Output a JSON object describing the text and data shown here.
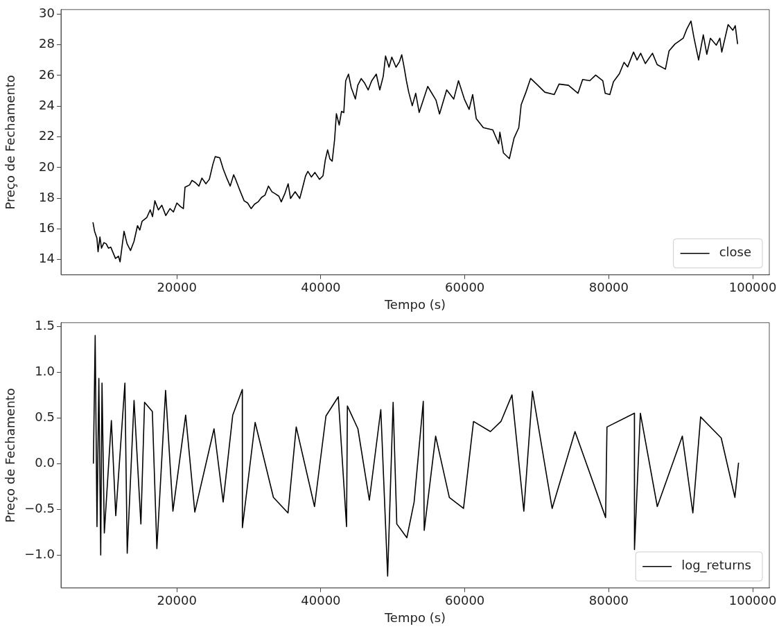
{
  "chart_data": [
    {
      "type": "line",
      "xlabel": "Tempo (s)",
      "ylabel": "Preço de Fechamento",
      "legend": "bottom right",
      "xlim": [
        3900,
        102300
      ],
      "ylim": [
        13.0,
        30.3
      ],
      "xticks": [
        20000,
        40000,
        60000,
        80000,
        100000
      ],
      "yticks": [
        14,
        16,
        18,
        20,
        22,
        24,
        26,
        28,
        30
      ],
      "x": [
        8340,
        8570,
        8890,
        9050,
        9310,
        9530,
        9860,
        10180,
        10500,
        10820,
        11140,
        11470,
        11880,
        12110,
        12430,
        12660,
        13080,
        13560,
        14040,
        14530,
        14850,
        15170,
        15810,
        16300,
        16620,
        16940,
        17430,
        17910,
        18460,
        19040,
        19520,
        20000,
        20490,
        20900,
        21130,
        21770,
        22100,
        22580,
        23060,
        23480,
        24030,
        24510,
        24990,
        25320,
        25960,
        26440,
        26930,
        27410,
        27890,
        28220,
        28700,
        29340,
        29830,
        30310,
        30790,
        31280,
        31760,
        32240,
        32720,
        33210,
        33690,
        34170,
        34500,
        34980,
        35460,
        35790,
        36430,
        37070,
        37400,
        37880,
        38200,
        38690,
        39170,
        39810,
        40300,
        40620,
        40940,
        41260,
        41580,
        41910,
        42160,
        42550,
        42870,
        43190,
        43450,
        43840,
        44220,
        44800,
        45130,
        45610,
        46090,
        46580,
        47060,
        47700,
        48190,
        48670,
        48990,
        49470,
        49860,
        50440,
        50920,
        51240,
        51570,
        51890,
        52210,
        52700,
        53180,
        53660,
        54850,
        56000,
        56490,
        57480,
        58460,
        59120,
        59940,
        60600,
        61090,
        61590,
        62570,
        63890,
        64710,
        64870,
        65370,
        66190,
        66840,
        67500,
        67830,
        68490,
        69140,
        69970,
        71120,
        72430,
        73090,
        74400,
        75720,
        76370,
        77360,
        78180,
        79170,
        79500,
        80150,
        80650,
        81470,
        82120,
        82620,
        83440,
        83930,
        84430,
        85080,
        86070,
        86720,
        87870,
        88370,
        89190,
        90340,
        90830,
        91420,
        91820,
        92480,
        93130,
        93620,
        94120,
        94940,
        95430,
        95700,
        96580,
        97240,
        97570,
        97900
      ],
      "series": [
        {
          "name": "close",
          "color": "#000000",
          "values": [
            16.43,
            15.84,
            15.4,
            14.51,
            15.47,
            14.74,
            15.1,
            15.03,
            14.74,
            14.81,
            14.44,
            14.07,
            14.22,
            13.85,
            15.03,
            15.84,
            15.03,
            14.59,
            15.18,
            16.21,
            15.92,
            16.5,
            16.73,
            17.24,
            16.8,
            17.83,
            17.24,
            17.54,
            16.87,
            17.32,
            17.1,
            17.69,
            17.46,
            17.32,
            18.72,
            18.87,
            19.16,
            19.01,
            18.79,
            19.31,
            18.94,
            19.23,
            20.19,
            20.71,
            20.64,
            19.9,
            19.31,
            18.79,
            19.53,
            19.16,
            18.57,
            17.83,
            17.69,
            17.32,
            17.61,
            17.76,
            18.05,
            18.2,
            18.79,
            18.42,
            18.28,
            18.13,
            17.76,
            18.28,
            18.94,
            17.98,
            18.42,
            17.98,
            18.57,
            19.46,
            19.75,
            19.38,
            19.68,
            19.23,
            19.46,
            20.49,
            21.15,
            20.56,
            20.41,
            21.82,
            23.51,
            22.77,
            23.66,
            23.58,
            25.65,
            26.09,
            25.21,
            24.47,
            25.36,
            25.8,
            25.5,
            25.06,
            25.65,
            26.09,
            25.06,
            25.95,
            27.27,
            26.54,
            27.2,
            26.54,
            26.9,
            27.35,
            26.54,
            25.65,
            24.91,
            24.03,
            24.84,
            23.59,
            25.29,
            24.39,
            23.49,
            25.06,
            24.46,
            25.66,
            24.46,
            23.79,
            24.76,
            23.19,
            22.6,
            22.45,
            21.55,
            22.3,
            20.95,
            20.58,
            21.92,
            22.6,
            24.09,
            24.91,
            25.81,
            25.44,
            24.91,
            24.76,
            25.44,
            25.36,
            24.84,
            25.74,
            25.66,
            26.03,
            25.66,
            24.84,
            24.76,
            25.59,
            26.11,
            26.86,
            26.56,
            27.53,
            27.01,
            27.45,
            26.78,
            27.45,
            26.71,
            26.41,
            27.6,
            28.05,
            28.43,
            29.02,
            29.55,
            28.5,
            27.01,
            28.65,
            27.38,
            28.43,
            27.98,
            28.43,
            27.53,
            29.32,
            28.95,
            29.25,
            28.05
          ]
        }
      ]
    },
    {
      "type": "line",
      "xlabel": "Tempo (s)",
      "ylabel": "Preço de Fechamento",
      "legend": "bottom right",
      "xlim": [
        3900,
        102300
      ],
      "ylim": [
        -1.36,
        1.54
      ],
      "xticks": [
        20000,
        40000,
        60000,
        80000,
        100000
      ],
      "yticks": [
        {
          "value": -1.0,
          "label": "−1.0"
        },
        {
          "value": -0.5,
          "label": "−0.5"
        },
        {
          "value": 0.0,
          "label": "0.0"
        },
        {
          "value": 0.5,
          "label": "0.5"
        },
        {
          "value": 1.0,
          "label": "1.0"
        },
        {
          "value": 1.5,
          "label": "1.5"
        }
      ],
      "x": [
        8400,
        8650,
        8900,
        9160,
        9420,
        9600,
        9920,
        10900,
        11510,
        12780,
        13100,
        14050,
        15000,
        15510,
        16590,
        17220,
        18430,
        19450,
        21220,
        22490,
        25160,
        26430,
        27760,
        29090,
        29100,
        30870,
        33410,
        35440,
        36580,
        39120,
        40710,
        42420,
        43570,
        43690,
        45150,
        46740,
        48330,
        49280,
        50040,
        50550,
        51950,
        52960,
        54230,
        54360,
        55950,
        57850,
        59820,
        61210,
        63560,
        65020,
        66550,
        68200,
        69400,
        72130,
        75310,
        79560,
        79750,
        83560,
        83570,
        84390,
        86740,
        90220,
        91680,
        92760,
        95620,
        97520,
        98030
      ],
      "series": [
        {
          "name": "log_returns",
          "color": "#000000",
          "values": [
            0.0,
            1.4,
            -0.69,
            0.93,
            -1.0,
            0.88,
            -0.76,
            0.47,
            -0.57,
            0.88,
            -0.98,
            0.69,
            -0.66,
            0.67,
            0.57,
            -0.93,
            0.8,
            -0.52,
            0.53,
            -0.53,
            0.38,
            -0.42,
            0.53,
            0.81,
            -0.7,
            0.45,
            -0.37,
            -0.54,
            0.4,
            -0.47,
            0.52,
            0.73,
            -0.69,
            0.63,
            0.38,
            -0.4,
            0.59,
            -1.23,
            0.67,
            -0.66,
            -0.81,
            -0.42,
            0.68,
            -0.73,
            0.3,
            -0.37,
            -0.49,
            0.46,
            0.35,
            0.46,
            0.75,
            -0.52,
            0.79,
            -0.49,
            0.35,
            -0.59,
            0.4,
            0.55,
            -0.94,
            0.55,
            -0.47,
            0.3,
            -0.54,
            0.51,
            0.28,
            -0.37,
            0.01
          ]
        }
      ]
    }
  ]
}
